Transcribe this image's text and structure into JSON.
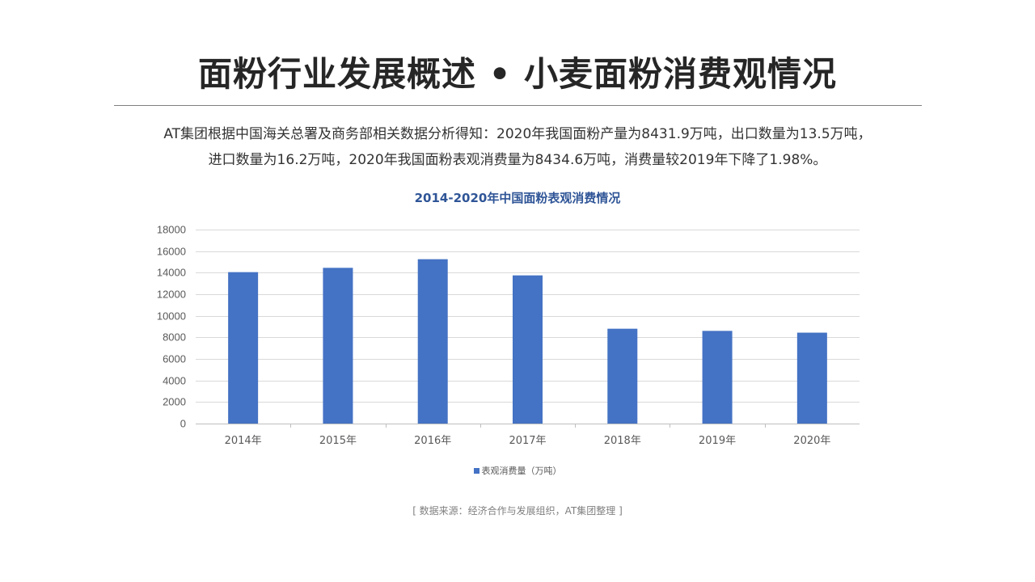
{
  "page": {
    "title": "面粉行业发展概述 • 小麦面粉消费观情况",
    "summary_line1": "AT集团根据中国海关总署及商务部相关数据分析得知：2020年我国面粉产量为8431.9万吨，出口数量为13.5万吨，",
    "summary_line2": "进口数量为16.2万吨，2020年我国面粉表观消费量为8434.6万吨，消费量较2019年下降了1.98%。",
    "source": "[ 数据来源：经济合作与发展组织，AT集团整理 ]"
  },
  "colors": {
    "bar": "#4472c4",
    "chart_title": "#2f5597",
    "grid": "#d9d9d9"
  },
  "chart_data": {
    "type": "bar",
    "title": "2014-2020年中国面粉表观消费情况",
    "categories": [
      "2014年",
      "2015年",
      "2016年",
      "2017年",
      "2018年",
      "2019年",
      "2020年"
    ],
    "series": [
      {
        "name": "表观消费量（万吨）",
        "values": [
          14050,
          14450,
          15250,
          13750,
          8800,
          8600,
          8434.6
        ]
      }
    ],
    "yticks": [
      "0",
      "2000",
      "4000",
      "6000",
      "8000",
      "10000",
      "12000",
      "14000",
      "16000",
      "18000"
    ],
    "ylim": [
      0,
      18000
    ],
    "grid": true,
    "legend": "bottom"
  }
}
